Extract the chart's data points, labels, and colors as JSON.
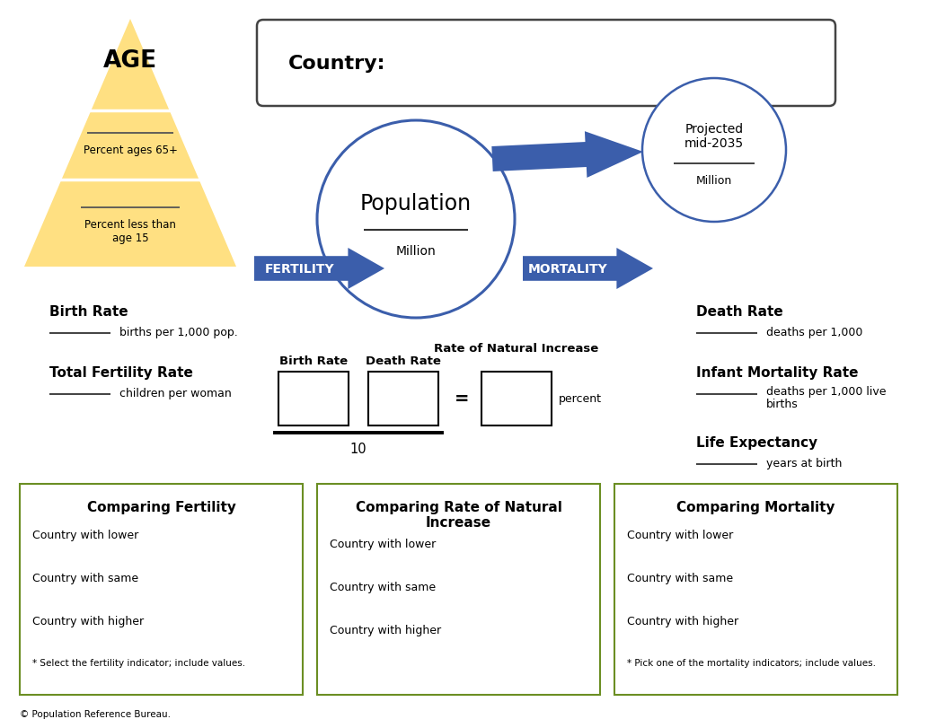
{
  "bg_color": "#ffffff",
  "arrow_color": "#3B5EAB",
  "triangle_color": "#FFE082",
  "circle_edge": "#3B5EAB",
  "box_edge": "#6B8E23",
  "country_box_edge": "#444444",
  "text_color": "#000000",
  "age_label": "AGE",
  "country_label": "Country:",
  "population_label": "Population",
  "million_label": "Million",
  "projected_label": "Projected\nmid-2035",
  "proj_million_label": "Million",
  "fertility_label": "FERTILITY",
  "mortality_label": "MORTALITY",
  "birth_rate_label": "Birth Rate",
  "birth_rate_sub": "births per 1,000 pop.",
  "tfr_label": "Total Fertility Rate",
  "tfr_sub": "children per woman",
  "death_rate_label": "Death Rate",
  "death_rate_sub": "deaths per 1,000",
  "imr_label": "Infant Mortality Rate",
  "imr_sub1": "deaths per 1,000 live",
  "imr_sub2": "births",
  "le_label": "Life Expectancy",
  "le_sub": "years at birth",
  "percent_65_label": "Percent ages 65+",
  "percent_15_label": "Percent less than\nage 15",
  "birth_rate_box": "Birth Rate",
  "death_rate_box": "Death Rate",
  "rni_label": "Rate of Natural Increase",
  "rni_sub": "percent",
  "ten_label": "10",
  "eq_label": "=",
  "compare_fertility_title": "Comparing Fertility",
  "compare_fertility_lines": [
    "Country with lower",
    "Country with same",
    "Country with higher",
    "* Select the fertility indicator; include values."
  ],
  "compare_rni_title": "Comparing Rate of Natural\nIncrease",
  "compare_rni_lines": [
    "Country with lower",
    "Country with same",
    "Country with higher"
  ],
  "compare_mortality_title": "Comparing Mortality",
  "compare_mortality_lines": [
    "Country with lower",
    "Country with same",
    "Country with higher",
    "* Pick one of the mortality indicators; include values."
  ],
  "footer": "© Population Reference Bureau."
}
